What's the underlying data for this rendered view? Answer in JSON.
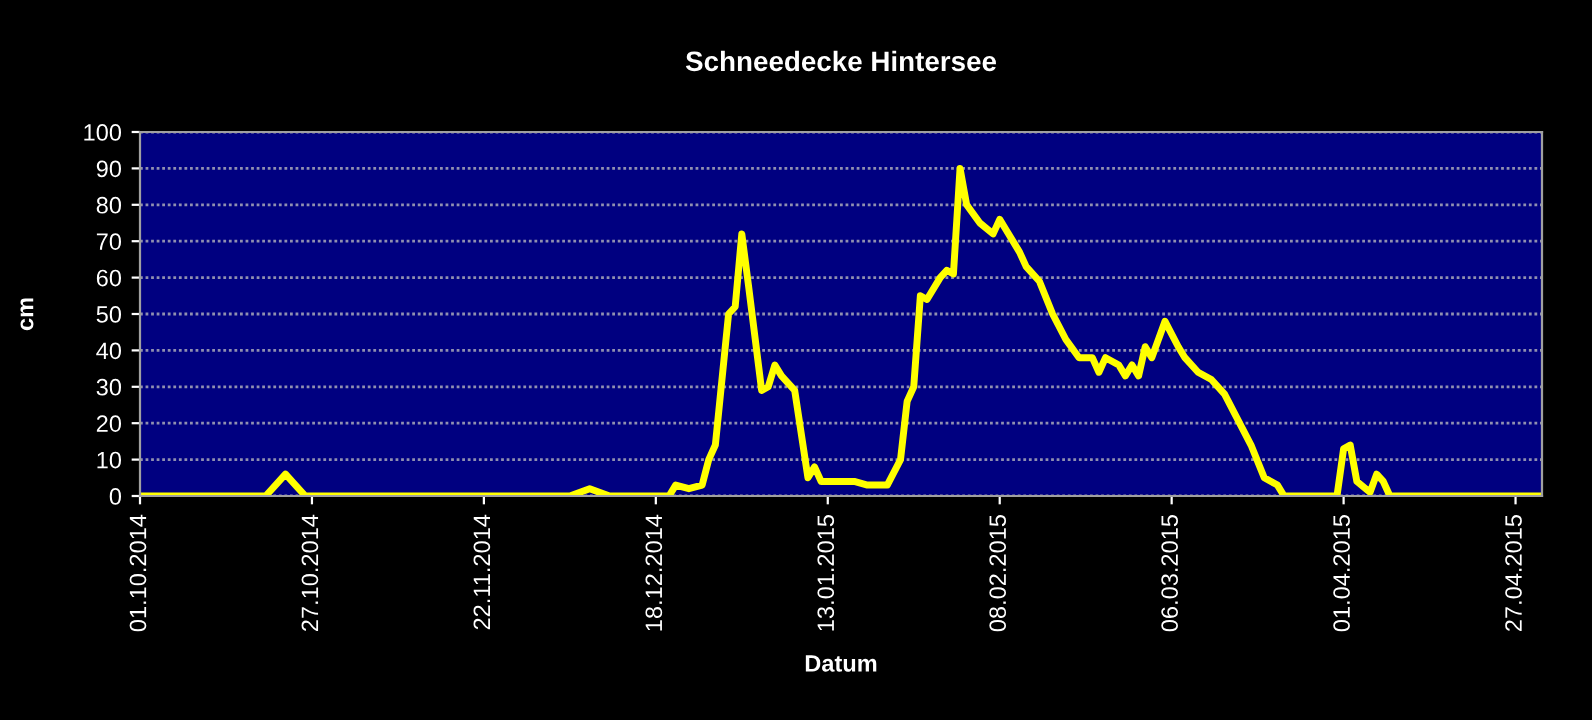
{
  "chart_data": {
    "type": "line",
    "title": "Schneedecke Hintersee",
    "xlabel": "Datum",
    "ylabel": "cm",
    "x": [
      "2014-10-01",
      "2014-10-20",
      "2014-10-23",
      "2014-10-26",
      "2014-12-05",
      "2014-12-08",
      "2014-12-11",
      "2014-12-20",
      "2014-12-21",
      "2014-12-23",
      "2014-12-25",
      "2014-12-26",
      "2014-12-27",
      "2014-12-29",
      "2014-12-30",
      "2014-12-31",
      "2015-01-01",
      "2015-01-03",
      "2015-01-04",
      "2015-01-05",
      "2015-01-06",
      "2015-01-08",
      "2015-01-10",
      "2015-01-11",
      "2015-01-12",
      "2015-01-17",
      "2015-01-19",
      "2015-01-22",
      "2015-01-24",
      "2015-01-25",
      "2015-01-26",
      "2015-01-27",
      "2015-01-28",
      "2015-01-30",
      "2015-01-31",
      "2015-02-01",
      "2015-02-02",
      "2015-02-03",
      "2015-02-05",
      "2015-02-07",
      "2015-02-08",
      "2015-02-09",
      "2015-02-11",
      "2015-02-12",
      "2015-02-14",
      "2015-02-16",
      "2015-02-18",
      "2015-02-20",
      "2015-02-22",
      "2015-02-23",
      "2015-02-24",
      "2015-02-26",
      "2015-02-27",
      "2015-02-28",
      "2015-03-01",
      "2015-03-02",
      "2015-03-03",
      "2015-03-05",
      "2015-03-07",
      "2015-03-08",
      "2015-03-10",
      "2015-03-12",
      "2015-03-14",
      "2015-03-16",
      "2015-03-18",
      "2015-03-20",
      "2015-03-22",
      "2015-03-23",
      "2015-03-31",
      "2015-04-01",
      "2015-04-02",
      "2015-04-03",
      "2015-04-05",
      "2015-04-06",
      "2015-04-07",
      "2015-04-08",
      "2015-05-01"
    ],
    "series": [
      {
        "color": "#ffff00",
        "values": [
          0,
          0,
          6,
          0,
          0,
          2,
          0,
          0,
          3,
          2,
          3,
          10,
          14,
          50,
          52,
          72,
          58,
          29,
          30,
          36,
          33,
          29,
          5,
          8,
          4,
          4,
          3,
          3,
          10,
          26,
          30,
          55,
          54,
          60,
          62,
          61,
          90,
          80,
          75,
          72,
          76,
          73,
          67,
          63,
          59,
          50,
          43,
          38,
          38,
          34,
          38,
          36,
          33,
          36,
          33,
          41,
          38,
          48,
          41,
          38,
          34,
          32,
          28,
          21,
          14,
          5,
          3,
          0,
          0,
          13,
          14,
          4,
          1,
          6,
          4,
          0,
          0
        ]
      }
    ],
    "xlim": [
      "2014-10-01",
      "2015-05-01"
    ],
    "xticks": [
      {
        "value": "2014-10-01",
        "label": "01.10.2014"
      },
      {
        "value": "2014-10-27",
        "label": "27.10.2014"
      },
      {
        "value": "2014-11-22",
        "label": "22.11.2014"
      },
      {
        "value": "2014-12-18",
        "label": "18.12.2014"
      },
      {
        "value": "2015-01-13",
        "label": "13.01.2015"
      },
      {
        "value": "2015-02-08",
        "label": "08.02.2015"
      },
      {
        "value": "2015-03-06",
        "label": "06.03.2015"
      },
      {
        "value": "2015-04-01",
        "label": "01.04.2015"
      },
      {
        "value": "2015-04-27",
        "label": "27.04.2015"
      }
    ],
    "ylim": [
      0,
      100
    ],
    "yticks": [
      0,
      10,
      20,
      30,
      40,
      50,
      60,
      70,
      80,
      90,
      100
    ],
    "grid": "y",
    "marker": "none",
    "line_style": "solid"
  }
}
